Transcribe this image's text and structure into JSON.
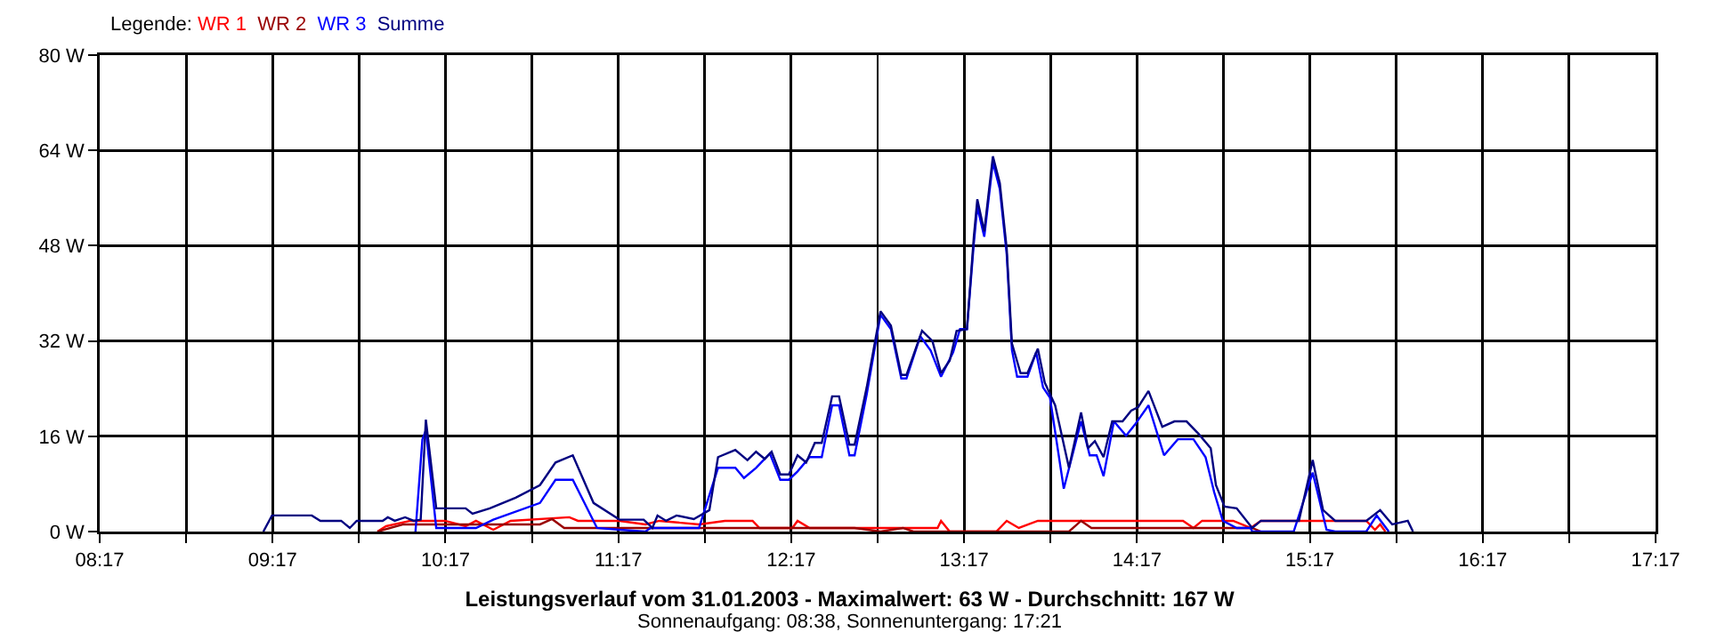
{
  "chart_data": {
    "type": "line",
    "title": "Leistungsverlauf vom 31.01.2003 - Maximalwert: 63 W - Durchschnitt: 167 W",
    "subtitle": "Sonnenaufgang: 08:38, Sonnenuntergang: 17:21",
    "legend_title": "Legende:",
    "legend": "top left",
    "grid": true,
    "marker": "none",
    "line_style": "solid",
    "xlim": [
      8.2833,
      17.2833
    ],
    "xticks": [
      {
        "value": 8.2833,
        "label": "08:17"
      },
      {
        "value": 8.7833,
        "label": null
      },
      {
        "value": 9.2833,
        "label": "09:17"
      },
      {
        "value": 9.7833,
        "label": null
      },
      {
        "value": 10.2833,
        "label": "10:17"
      },
      {
        "value": 10.7833,
        "label": null
      },
      {
        "value": 11.2833,
        "label": "11:17"
      },
      {
        "value": 11.7833,
        "label": null
      },
      {
        "value": 12.2833,
        "label": "12:17"
      },
      {
        "value": 12.7833,
        "label": null
      },
      {
        "value": 13.2833,
        "label": "13:17"
      },
      {
        "value": 13.7833,
        "label": null
      },
      {
        "value": 14.2833,
        "label": "14:17"
      },
      {
        "value": 14.7833,
        "label": null
      },
      {
        "value": 15.2833,
        "label": "15:17"
      },
      {
        "value": 15.7833,
        "label": null
      },
      {
        "value": 16.2833,
        "label": "16:17"
      },
      {
        "value": 16.7833,
        "label": null
      },
      {
        "value": 17.2833,
        "label": "17:17"
      }
    ],
    "ylim": [
      0,
      80
    ],
    "yticks": [
      {
        "value": 0,
        "label": "0 W"
      },
      {
        "value": 16,
        "label": "16 W"
      },
      {
        "value": 32,
        "label": "32 W"
      },
      {
        "value": 48,
        "label": "48 W"
      },
      {
        "value": 64,
        "label": "64 W"
      },
      {
        "value": 80,
        "label": "80 W"
      }
    ],
    "series": [
      {
        "name": "WR 1",
        "color": "#ff0000",
        "x": [
          9.89,
          9.94,
          10.08,
          10.28,
          10.4,
          10.46,
          10.56,
          10.66,
          11.0,
          11.05,
          11.29,
          11.44,
          11.52,
          11.75,
          11.9,
          12.06,
          12.1,
          12.29,
          12.32,
          12.39,
          13.13,
          13.15,
          13.2,
          13.47,
          13.53,
          13.6,
          13.71,
          14.55,
          14.61,
          14.66,
          14.84,
          14.94,
          15.0,
          15.61,
          15.66,
          15.69,
          15.72
        ],
        "values": [
          0,
          0.9,
          1.8,
          1.8,
          0.9,
          1.8,
          0.3,
          1.8,
          2.4,
          1.8,
          1.8,
          1.2,
          1.8,
          1.2,
          1.8,
          1.8,
          0.6,
          0.6,
          1.8,
          0.6,
          0.6,
          1.8,
          0,
          0,
          1.8,
          0.6,
          1.8,
          1.8,
          0.6,
          1.8,
          1.8,
          0.6,
          1.8,
          1.8,
          0.3,
          1.2,
          0
        ]
      },
      {
        "name": "WR 2",
        "color": "#990000",
        "x": [
          9.89,
          10.04,
          10.83,
          10.9,
          10.97,
          11.62,
          12.65,
          12.8,
          12.93,
          12.99,
          13.89,
          13.96,
          14.02,
          14.95,
          15.0
        ],
        "values": [
          0,
          1.2,
          1.2,
          2.1,
          0.6,
          0.6,
          0.6,
          0,
          0.6,
          0,
          0,
          1.8,
          0.6,
          0.6,
          0
        ]
      },
      {
        "name": "WR 3",
        "color": "#0000ff",
        "x": [
          10.11,
          10.15,
          10.17,
          10.23,
          10.46,
          10.56,
          10.83,
          10.92,
          11.02,
          11.16,
          11.29,
          11.44,
          11.47,
          11.75,
          11.86,
          11.96,
          12.01,
          12.08,
          12.16,
          12.22,
          12.27,
          12.32,
          12.39,
          12.46,
          12.52,
          12.56,
          12.62,
          12.65,
          12.72,
          12.8,
          12.86,
          12.92,
          12.95,
          13.03,
          13.09,
          13.15,
          13.22,
          13.26,
          13.3,
          13.34,
          13.36,
          13.4,
          13.45,
          13.49,
          13.53,
          13.56,
          13.59,
          13.65,
          13.7,
          13.74,
          13.78,
          13.86,
          13.96,
          14.01,
          14.05,
          14.09,
          14.15,
          14.22,
          14.27,
          14.35,
          14.44,
          14.52,
          14.61,
          14.68,
          14.73,
          14.78,
          14.86,
          14.94,
          14.95,
          15.19,
          15.3,
          15.38,
          15.43,
          15.61,
          15.67,
          15.74
        ],
        "values": [
          0,
          15.5,
          17,
          0.6,
          0.6,
          2,
          4.8,
          8.7,
          8.7,
          0.6,
          0.3,
          0,
          0.6,
          0.6,
          10.7,
          10.7,
          9,
          10.7,
          13.1,
          8.7,
          8.7,
          10.1,
          12.5,
          12.5,
          21.2,
          21.2,
          12.8,
          12.8,
          23,
          36.4,
          34,
          25.7,
          25.7,
          32.8,
          30.4,
          26,
          30.1,
          34,
          34,
          48.5,
          54.5,
          49.5,
          62,
          57.5,
          46.5,
          30.5,
          26,
          26,
          30.1,
          24.2,
          22.5,
          7.2,
          18.5,
          12.8,
          12.8,
          9.3,
          18.5,
          16.1,
          17.9,
          21.2,
          12.8,
          15.5,
          15.5,
          12.5,
          6.6,
          1.8,
          0.6,
          0.6,
          0,
          0,
          9.9,
          0.3,
          0,
          0,
          2.7,
          0
        ]
      },
      {
        "name": "Summe",
        "color": "#000080",
        "x": [
          9.23,
          9.28,
          9.51,
          9.56,
          9.68,
          9.73,
          9.77,
          9.92,
          9.95,
          9.99,
          10.05,
          10.1,
          10.14,
          10.17,
          10.23,
          10.4,
          10.44,
          10.54,
          10.69,
          10.83,
          10.92,
          11.02,
          11.14,
          11.29,
          11.43,
          11.48,
          11.51,
          11.56,
          11.62,
          11.72,
          11.81,
          11.86,
          11.96,
          12.03,
          12.08,
          12.13,
          12.17,
          12.22,
          12.27,
          12.32,
          12.37,
          12.42,
          12.46,
          12.52,
          12.56,
          12.62,
          12.65,
          12.72,
          12.8,
          12.86,
          12.92,
          12.95,
          13.04,
          13.1,
          13.15,
          13.2,
          13.24,
          13.3,
          13.34,
          13.36,
          13.4,
          13.45,
          13.49,
          13.53,
          13.56,
          13.61,
          13.65,
          13.71,
          13.75,
          13.81,
          13.89,
          13.96,
          14.0,
          14.04,
          14.09,
          14.14,
          14.2,
          14.25,
          14.29,
          14.35,
          14.43,
          14.5,
          14.57,
          14.64,
          14.71,
          14.74,
          14.79,
          14.86,
          14.95,
          15.0,
          15.22,
          15.3,
          15.36,
          15.43,
          15.61,
          15.69,
          15.76,
          15.85,
          15.88
        ],
        "values": [
          0,
          2.7,
          2.7,
          1.8,
          1.8,
          0.6,
          1.8,
          1.8,
          2.4,
          1.8,
          2.4,
          1.8,
          2,
          18.8,
          3.9,
          3.9,
          3,
          3.9,
          5.7,
          7.8,
          11.6,
          12.8,
          4.8,
          2,
          2,
          0.6,
          2.7,
          1.8,
          2.7,
          2.1,
          3.6,
          12.5,
          13.7,
          12,
          13.4,
          12.2,
          13.4,
          9.6,
          9.6,
          12.8,
          11.6,
          14.9,
          14.9,
          22.7,
          22.7,
          14.6,
          14.6,
          24.2,
          37,
          34.6,
          26.3,
          26.3,
          33.7,
          32,
          26.6,
          28.7,
          33.7,
          34,
          49.6,
          55.8,
          50.4,
          63,
          58.5,
          47.5,
          31.6,
          26.6,
          26.6,
          30.7,
          25,
          21.2,
          10.7,
          20,
          14,
          15.2,
          12.5,
          18.5,
          18.5,
          20.3,
          20.9,
          23.6,
          17.6,
          18.5,
          18.5,
          16.4,
          14,
          7.8,
          4.2,
          3.9,
          0.6,
          1.8,
          1.8,
          12,
          3.6,
          1.8,
          1.8,
          3.6,
          1.2,
          1.8,
          0
        ]
      }
    ]
  }
}
